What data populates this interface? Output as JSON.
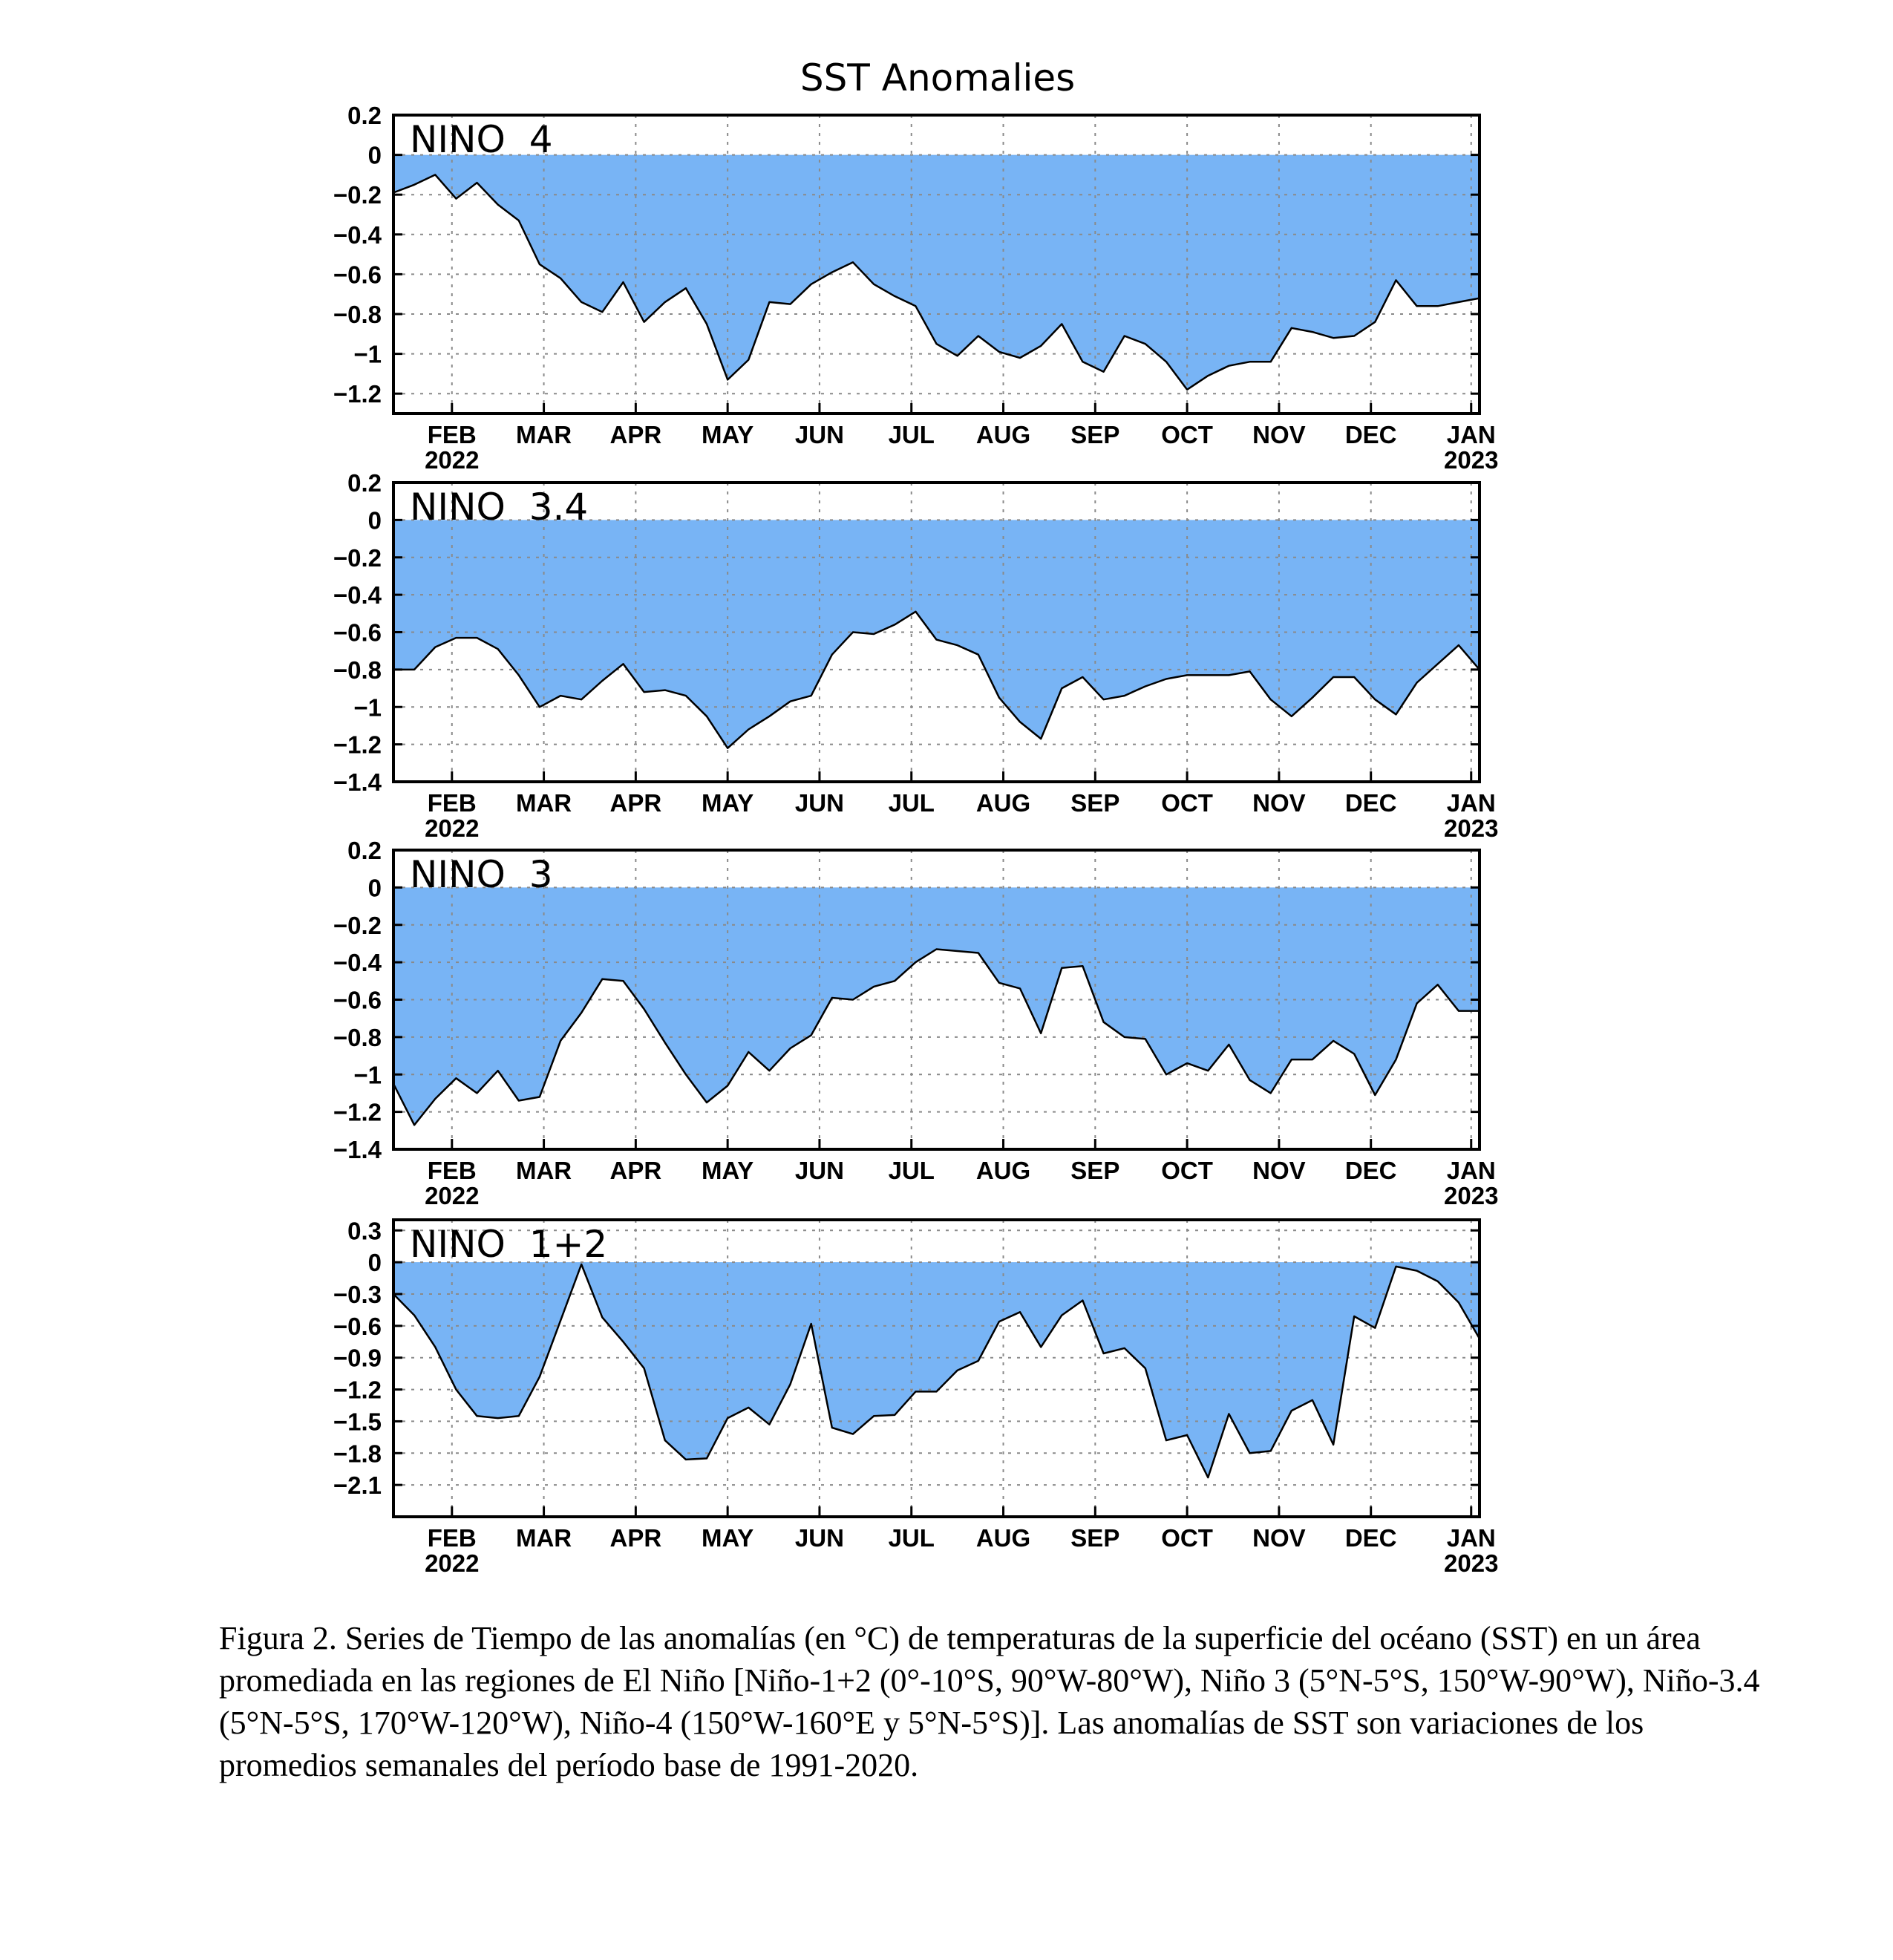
{
  "figure": {
    "title": "SST Anomalies",
    "fill_color": "#78b4f5",
    "caption": "Figura 2. Series de Tiempo de las anomalías (en °C) de temperaturas de la superficie del océano (SST) en un área promediada en las regiones de El Niño [Niño-1+2 (0°-10°S, 90°W-80°W), Niño 3 (5°N-5°S, 150°W-90°W), Niño-3.4 (5°N-5°S, 170°W-120°W), Niño-4 (150°W-160°E y 5°N-5°S)]. Las anomalías de SST son variaciones de los promedios semanales del período base de 1991-2020."
  },
  "chart_data": [
    {
      "type": "area",
      "title": "NINO 4",
      "ylim": [
        -1.3,
        0.2
      ],
      "yticks": [
        0.2,
        0,
        -0.2,
        -0.4,
        -0.6,
        -0.8,
        -1,
        -1.2
      ],
      "ytick_labels": [
        "0.2",
        "0",
        "−0.2",
        "−0.4",
        "−0.6",
        "−0.8",
        "−1",
        "−1.2"
      ],
      "xlim": [
        0,
        52
      ],
      "xticks": [
        2.8,
        7.2,
        11.6,
        16.0,
        20.4,
        24.8,
        29.2,
        33.6,
        38.0,
        42.4,
        46.8,
        51.6
      ],
      "xtick_labels": [
        "FEB",
        "MAR",
        "APR",
        "MAY",
        "JUN",
        "JUL",
        "AUG",
        "SEP",
        "OCT",
        "NOV",
        "DEC",
        "JAN"
      ],
      "year_labels": [
        {
          "at": "FEB",
          "text": "2022"
        },
        {
          "at": "JAN",
          "text": "2023"
        }
      ],
      "grid": true,
      "x": [
        0,
        1,
        2,
        3,
        4,
        5,
        6,
        7,
        8,
        9,
        10,
        11,
        12,
        13,
        14,
        15,
        16,
        17,
        18,
        19,
        20,
        21,
        22,
        23,
        24,
        25,
        26,
        27,
        28,
        29,
        30,
        31,
        32,
        33,
        34,
        35,
        36,
        37,
        38,
        39,
        40,
        41,
        42,
        43,
        44,
        45,
        46,
        47,
        48,
        49,
        50,
        51,
        52
      ],
      "values": [
        -0.19,
        -0.15,
        -0.1,
        -0.22,
        -0.14,
        -0.25,
        -0.33,
        -0.55,
        -0.62,
        -0.74,
        -0.79,
        -0.64,
        -0.84,
        -0.74,
        -0.67,
        -0.85,
        -1.13,
        -1.03,
        -0.74,
        -0.75,
        -0.65,
        -0.59,
        -0.54,
        -0.65,
        -0.71,
        -0.76,
        -0.95,
        -1.01,
        -0.91,
        -0.99,
        -1.02,
        -0.96,
        -0.85,
        -1.04,
        -1.09,
        -0.91,
        -0.95,
        -1.04,
        -1.18,
        -1.11,
        -1.06,
        -1.04,
        -1.04,
        -0.87,
        -0.89,
        -0.92,
        -0.91,
        -0.84,
        -0.63,
        -0.76,
        -0.76,
        -0.74,
        -0.72
      ]
    },
    {
      "type": "area",
      "title": "NINO 3.4",
      "ylim": [
        -1.4,
        0.2
      ],
      "yticks": [
        0.2,
        0,
        -0.2,
        -0.4,
        -0.6,
        -0.8,
        -1,
        -1.2,
        -1.4
      ],
      "ytick_labels": [
        "0.2",
        "0",
        "−0.2",
        "−0.4",
        "−0.6",
        "−0.8",
        "−1",
        "−1.2",
        "−1.4"
      ],
      "xlim": [
        0,
        52
      ],
      "xticks": [
        2.8,
        7.2,
        11.6,
        16.0,
        20.4,
        24.8,
        29.2,
        33.6,
        38.0,
        42.4,
        46.8,
        51.6
      ],
      "xtick_labels": [
        "FEB",
        "MAR",
        "APR",
        "MAY",
        "JUN",
        "JUL",
        "AUG",
        "SEP",
        "OCT",
        "NOV",
        "DEC",
        "JAN"
      ],
      "year_labels": [
        {
          "at": "FEB",
          "text": "2022"
        },
        {
          "at": "JAN",
          "text": "2023"
        }
      ],
      "grid": true,
      "x": [
        0,
        1,
        2,
        3,
        4,
        5,
        6,
        7,
        8,
        9,
        10,
        11,
        12,
        13,
        14,
        15,
        16,
        17,
        18,
        19,
        20,
        21,
        22,
        23,
        24,
        25,
        26,
        27,
        28,
        29,
        30,
        31,
        32,
        33,
        34,
        35,
        36,
        37,
        38,
        39,
        40,
        41,
        42,
        43,
        44,
        45,
        46,
        47,
        48,
        49,
        50,
        51,
        52
      ],
      "values": [
        -0.8,
        -0.8,
        -0.68,
        -0.63,
        -0.63,
        -0.69,
        -0.83,
        -1.0,
        -0.94,
        -0.96,
        -0.86,
        -0.77,
        -0.92,
        -0.91,
        -0.94,
        -1.05,
        -1.22,
        -1.12,
        -1.05,
        -0.97,
        -0.94,
        -0.72,
        -0.6,
        -0.61,
        -0.56,
        -0.49,
        -0.64,
        -0.67,
        -0.72,
        -0.95,
        -1.08,
        -1.17,
        -0.9,
        -0.84,
        -0.96,
        -0.94,
        -0.89,
        -0.85,
        -0.83,
        -0.83,
        -0.83,
        -0.81,
        -0.96,
        -1.05,
        -0.95,
        -0.84,
        -0.84,
        -0.96,
        -1.04,
        -0.87,
        -0.77,
        -0.67,
        -0.8
      ]
    },
    {
      "type": "area",
      "title": "NINO 3",
      "ylim": [
        -1.4,
        0.2
      ],
      "yticks": [
        0.2,
        0,
        -0.2,
        -0.4,
        -0.6,
        -0.8,
        -1,
        -1.2,
        -1.4
      ],
      "ytick_labels": [
        "0.2",
        "0",
        "−0.2",
        "−0.4",
        "−0.6",
        "−0.8",
        "−1",
        "−1.2",
        "−1.4"
      ],
      "xlim": [
        0,
        52
      ],
      "xticks": [
        2.8,
        7.2,
        11.6,
        16.0,
        20.4,
        24.8,
        29.2,
        33.6,
        38.0,
        42.4,
        46.8,
        51.6
      ],
      "xtick_labels": [
        "FEB",
        "MAR",
        "APR",
        "MAY",
        "JUN",
        "JUL",
        "AUG",
        "SEP",
        "OCT",
        "NOV",
        "DEC",
        "JAN"
      ],
      "year_labels": [
        {
          "at": "FEB",
          "text": "2022"
        },
        {
          "at": "JAN",
          "text": "2023"
        }
      ],
      "grid": true,
      "x": [
        0,
        1,
        2,
        3,
        4,
        5,
        6,
        7,
        8,
        9,
        10,
        11,
        12,
        13,
        14,
        15,
        16,
        17,
        18,
        19,
        20,
        21,
        22,
        23,
        24,
        25,
        26,
        27,
        28,
        29,
        30,
        31,
        32,
        33,
        34,
        35,
        36,
        37,
        38,
        39,
        40,
        41,
        42,
        43,
        44,
        45,
        46,
        47,
        48,
        49,
        50,
        51,
        52
      ],
      "values": [
        -1.05,
        -1.27,
        -1.13,
        -1.02,
        -1.1,
        -0.98,
        -1.14,
        -1.12,
        -0.82,
        -0.67,
        -0.49,
        -0.5,
        -0.65,
        -0.83,
        -1.0,
        -1.15,
        -1.06,
        -0.88,
        -0.98,
        -0.86,
        -0.79,
        -0.59,
        -0.6,
        -0.53,
        -0.5,
        -0.4,
        -0.33,
        -0.34,
        -0.35,
        -0.51,
        -0.54,
        -0.78,
        -0.43,
        -0.42,
        -0.72,
        -0.8,
        -0.81,
        -1.0,
        -0.94,
        -0.98,
        -0.84,
        -1.03,
        -1.1,
        -0.92,
        -0.92,
        -0.82,
        -0.89,
        -1.11,
        -0.92,
        -0.62,
        -0.52,
        -0.66,
        -0.66
      ]
    },
    {
      "type": "area",
      "title": "NINO 1+2",
      "ylim": [
        -2.4,
        0.4
      ],
      "yticks": [
        0.3,
        0,
        -0.3,
        -0.6,
        -0.9,
        -1.2,
        -1.5,
        -1.8,
        -2.1
      ],
      "ytick_labels": [
        "0.3",
        "0",
        "−0.3",
        "−0.6",
        "−0.9",
        "−1.2",
        "−1.5",
        "−1.8",
        "−2.1"
      ],
      "xlim": [
        0,
        52
      ],
      "xticks": [
        2.8,
        7.2,
        11.6,
        16.0,
        20.4,
        24.8,
        29.2,
        33.6,
        38.0,
        42.4,
        46.8,
        51.6
      ],
      "xtick_labels": [
        "FEB",
        "MAR",
        "APR",
        "MAY",
        "JUN",
        "JUL",
        "AUG",
        "SEP",
        "OCT",
        "NOV",
        "DEC",
        "JAN"
      ],
      "year_labels": [
        {
          "at": "FEB",
          "text": "2022"
        },
        {
          "at": "JAN",
          "text": "2023"
        }
      ],
      "grid": true,
      "x": [
        0,
        1,
        2,
        3,
        4,
        5,
        6,
        7,
        8,
        9,
        10,
        11,
        12,
        13,
        14,
        15,
        16,
        17,
        18,
        19,
        20,
        21,
        22,
        23,
        24,
        25,
        26,
        27,
        28,
        29,
        30,
        31,
        32,
        33,
        34,
        35,
        36,
        37,
        38,
        39,
        40,
        41,
        42,
        43,
        44,
        45,
        46,
        47,
        48,
        49,
        50,
        51,
        52
      ],
      "values": [
        -0.3,
        -0.5,
        -0.8,
        -1.2,
        -1.45,
        -1.47,
        -1.45,
        -1.08,
        -0.55,
        -0.02,
        -0.52,
        -0.75,
        -1.0,
        -1.68,
        -1.86,
        -1.85,
        -1.47,
        -1.37,
        -1.53,
        -1.15,
        -0.58,
        -1.56,
        -1.62,
        -1.45,
        -1.44,
        -1.22,
        -1.22,
        -1.02,
        -0.93,
        -0.56,
        -0.47,
        -0.8,
        -0.5,
        -0.36,
        -0.86,
        -0.81,
        -1.0,
        -1.68,
        -1.63,
        -2.03,
        -1.43,
        -1.8,
        -1.78,
        -1.4,
        -1.3,
        -1.72,
        -0.51,
        -0.62,
        -0.04,
        -0.08,
        -0.18,
        -0.38,
        -0.72
      ]
    }
  ]
}
